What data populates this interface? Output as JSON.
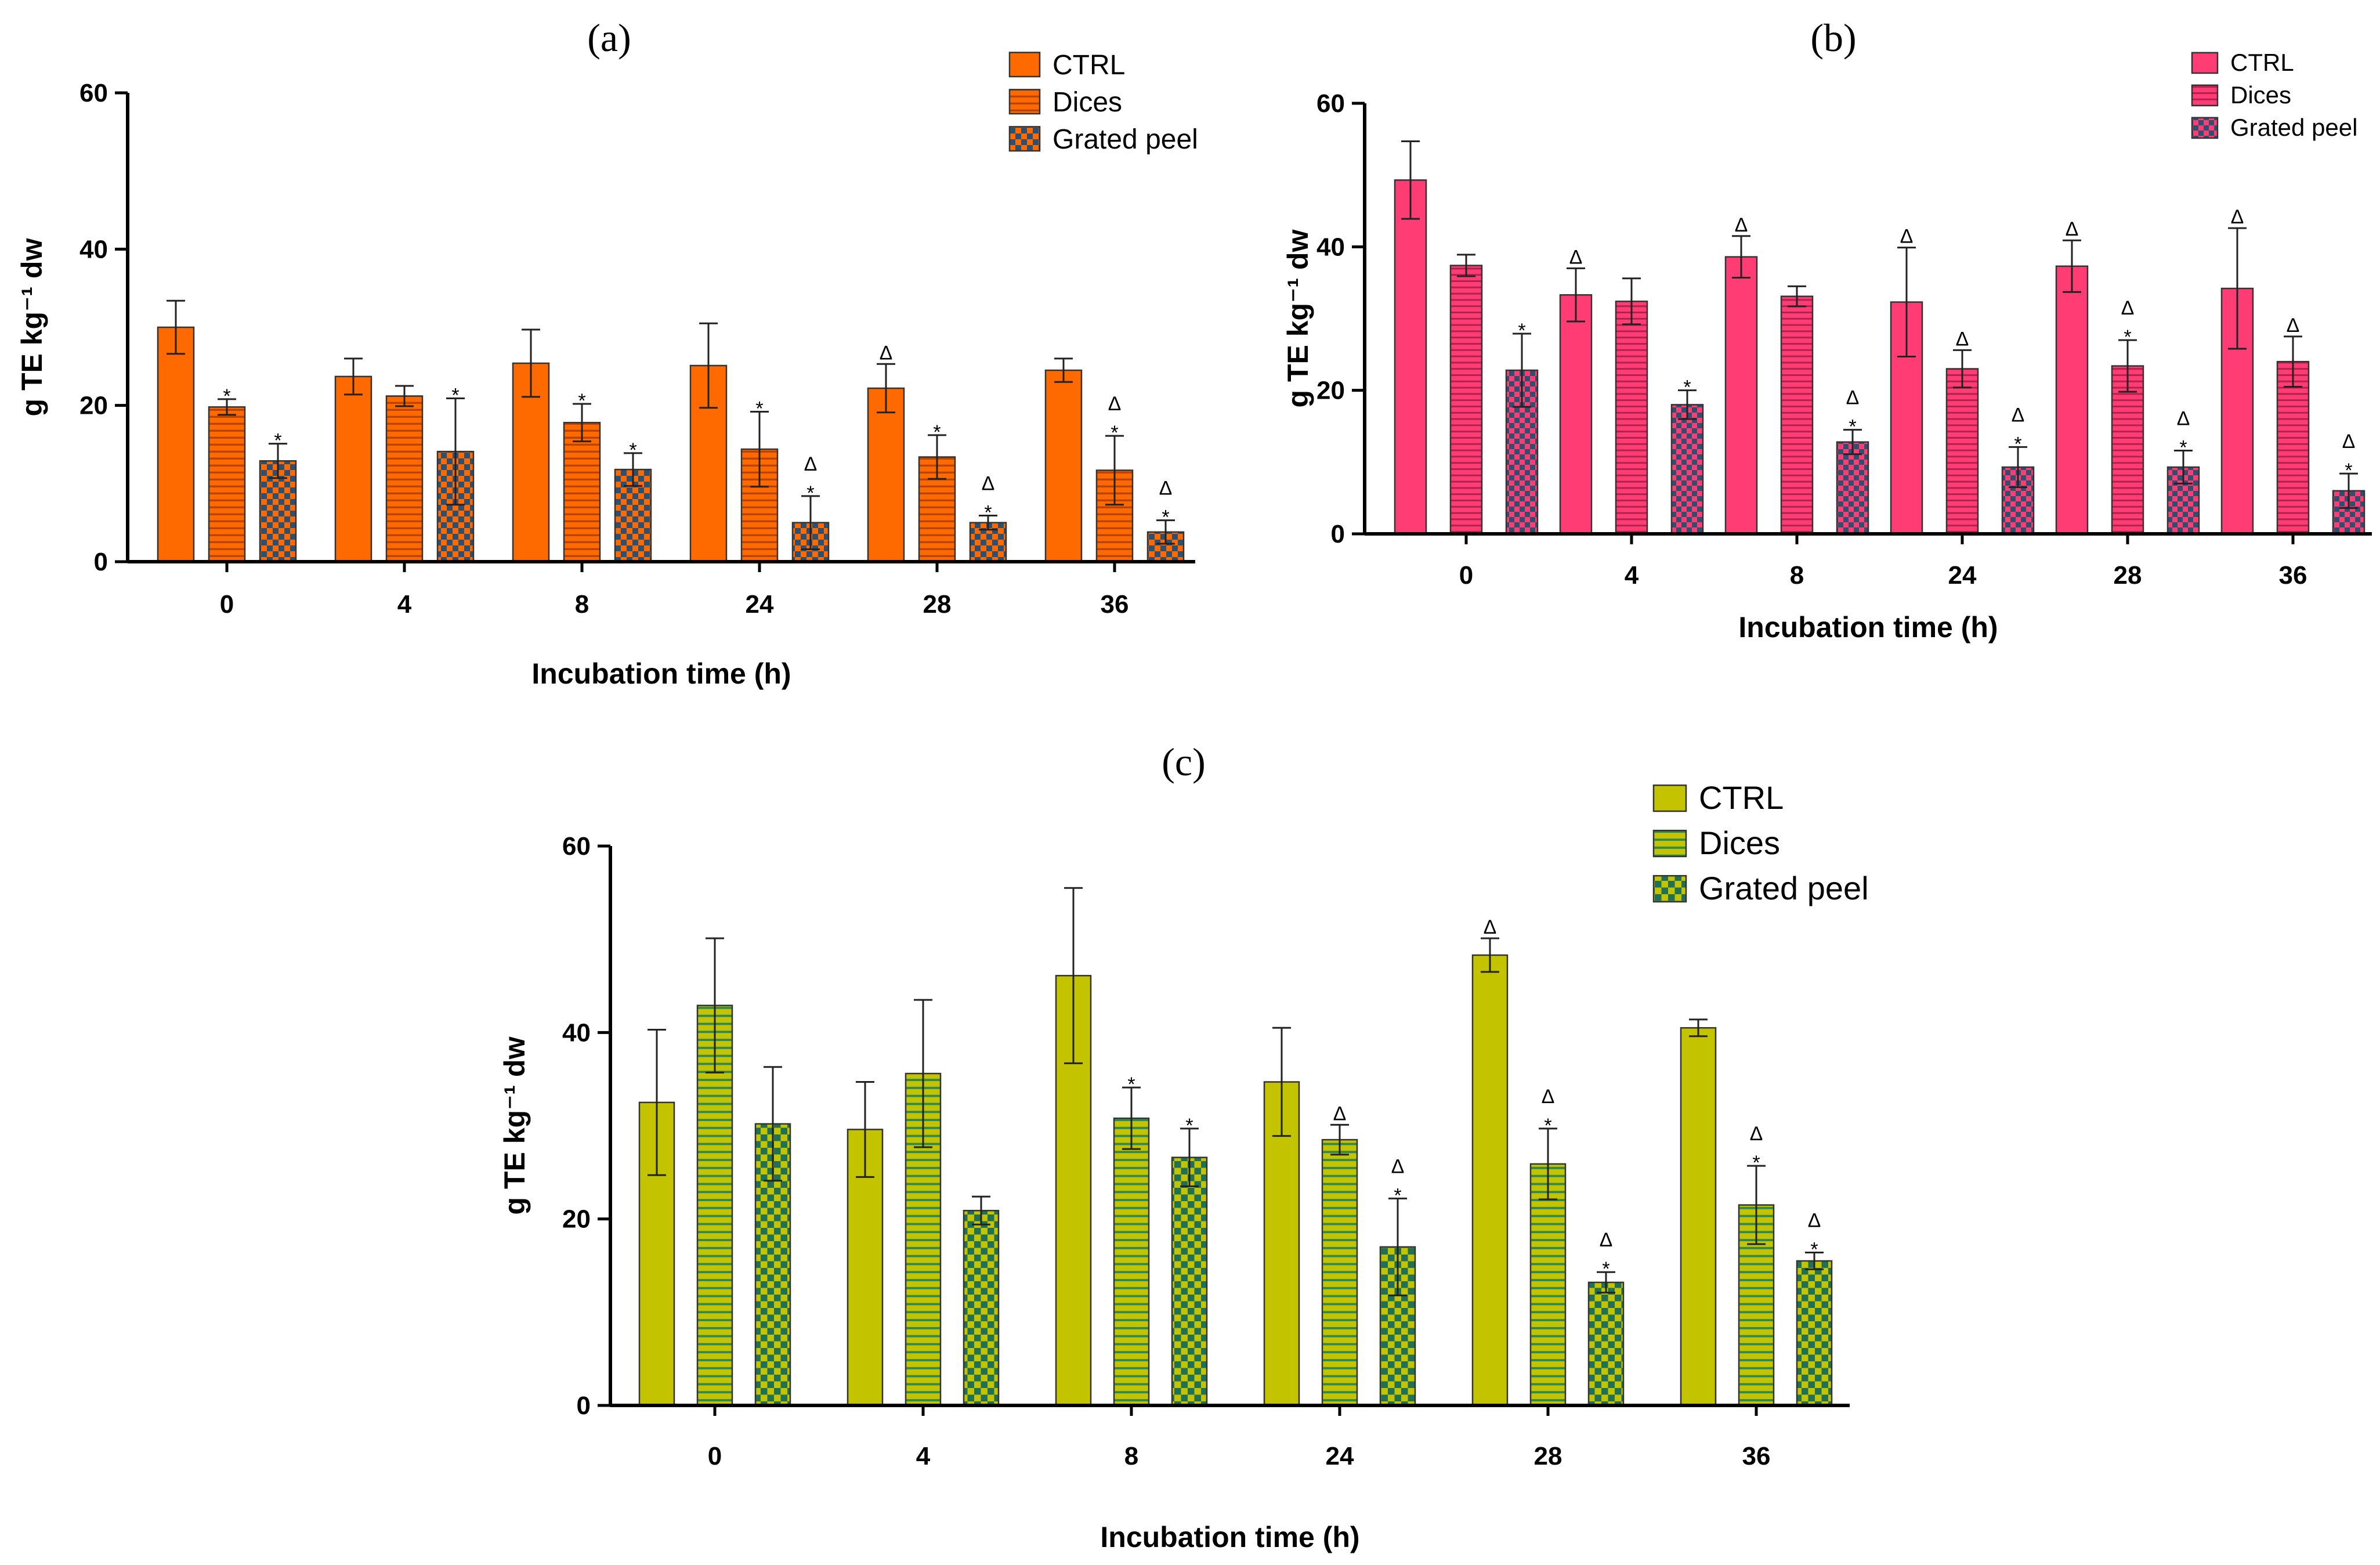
{
  "chart_data": [
    {
      "type": "bar",
      "title": "(a)",
      "xlabel": "Incubation time (h)",
      "ylabel": "g TE kg⁻¹ dw",
      "categories": [
        "0",
        "4",
        "8",
        "24",
        "28",
        "36"
      ],
      "ylim": [
        0,
        60
      ],
      "yticks": [
        "0",
        "20",
        "40",
        "60"
      ],
      "legend_position": "top-right",
      "colors": {
        "bar": "#ff6a00",
        "stripe": "#b94400",
        "check_dark": "#2f4f6f"
      },
      "series": [
        {
          "name": "CTRL",
          "pattern": "solid",
          "values": [
            30.0,
            23.7,
            25.4,
            25.1,
            22.2,
            24.5
          ],
          "errors": [
            3.4,
            2.3,
            4.3,
            5.4,
            3.1,
            1.5
          ],
          "marks": [
            "",
            "",
            "",
            "",
            "Δ",
            ""
          ]
        },
        {
          "name": "Dices",
          "pattern": "stripes",
          "values": [
            19.8,
            21.2,
            17.8,
            14.4,
            13.4,
            11.7
          ],
          "errors": [
            1.0,
            1.3,
            2.4,
            4.8,
            2.8,
            4.4
          ],
          "marks": [
            "*",
            "",
            "*",
            "*",
            "*",
            "Δ*"
          ]
        },
        {
          "name": "Grated peel",
          "pattern": "checker",
          "values": [
            12.9,
            14.1,
            11.8,
            5.0,
            5.0,
            3.8
          ],
          "errors": [
            2.2,
            6.8,
            2.1,
            3.4,
            0.9,
            1.5
          ],
          "marks": [
            "*",
            "*",
            "*",
            "Δ*",
            "Δ*",
            "Δ*"
          ]
        }
      ]
    },
    {
      "type": "bar",
      "title": "(b)",
      "xlabel": "Incubation time (h)",
      "ylabel": "g TE kg⁻¹ dw",
      "categories": [
        "0",
        "4",
        "8",
        "24",
        "28",
        "36"
      ],
      "ylim": [
        0,
        60
      ],
      "yticks": [
        "0",
        "20",
        "40",
        "60"
      ],
      "legend_position": "top-right",
      "colors": {
        "bar": "#ff3d74",
        "stripe": "#b0214e",
        "check_dark": "#2f4f6f"
      },
      "series": [
        {
          "name": "CTRL",
          "pattern": "solid",
          "values": [
            49.3,
            33.3,
            38.6,
            32.3,
            37.3,
            34.2
          ],
          "errors": [
            5.4,
            3.7,
            2.9,
            7.6,
            3.6,
            8.4
          ],
          "marks": [
            "",
            "Δ",
            "Δ",
            "Δ",
            "Δ",
            "Δ"
          ]
        },
        {
          "name": "Dices",
          "pattern": "stripes",
          "values": [
            37.4,
            32.4,
            33.1,
            23.0,
            23.4,
            24.0
          ],
          "errors": [
            1.5,
            3.2,
            1.4,
            2.6,
            3.6,
            3.5
          ],
          "marks": [
            "",
            "",
            "",
            "Δ",
            "Δ*",
            "Δ"
          ]
        },
        {
          "name": "Grated peel",
          "pattern": "checker",
          "values": [
            22.8,
            18.0,
            12.8,
            9.3,
            9.3,
            6.0
          ],
          "errors": [
            5.1,
            2.0,
            1.7,
            2.8,
            2.3,
            2.4
          ],
          "marks": [
            "*",
            "*",
            "Δ*",
            "Δ*",
            "Δ*",
            "Δ*"
          ]
        }
      ]
    },
    {
      "type": "bar",
      "title": "(c)",
      "xlabel": "Incubation time (h)",
      "ylabel": "g TE kg⁻¹ dw",
      "categories": [
        "0",
        "4",
        "8",
        "24",
        "28",
        "36"
      ],
      "ylim": [
        0,
        60
      ],
      "yticks": [
        "0",
        "20",
        "40",
        "60"
      ],
      "legend_position": "top-right",
      "colors": {
        "bar": "#c3c300",
        "stripe": "#2d8a55",
        "check_dark": "#1f7055"
      },
      "series": [
        {
          "name": "CTRL",
          "pattern": "solid",
          "values": [
            32.5,
            29.6,
            46.1,
            34.7,
            48.3,
            40.5
          ],
          "errors": [
            7.8,
            5.1,
            9.4,
            5.8,
            1.8,
            0.9
          ],
          "marks": [
            "",
            "",
            "",
            "",
            "Δ",
            ""
          ]
        },
        {
          "name": "Dices",
          "pattern": "stripes",
          "values": [
            42.9,
            35.6,
            30.8,
            28.5,
            25.9,
            21.5
          ],
          "errors": [
            7.2,
            7.9,
            3.3,
            1.6,
            3.8,
            4.2
          ],
          "marks": [
            "",
            "",
            "*",
            "Δ",
            "Δ*",
            "Δ*"
          ]
        },
        {
          "name": "Grated peel",
          "pattern": "checker",
          "values": [
            30.2,
            20.9,
            26.6,
            17.0,
            13.2,
            15.5
          ],
          "errors": [
            6.1,
            1.5,
            3.1,
            5.2,
            1.1,
            0.9
          ],
          "marks": [
            "",
            "",
            "*",
            "Δ*",
            "Δ*",
            "Δ*"
          ]
        }
      ]
    }
  ]
}
